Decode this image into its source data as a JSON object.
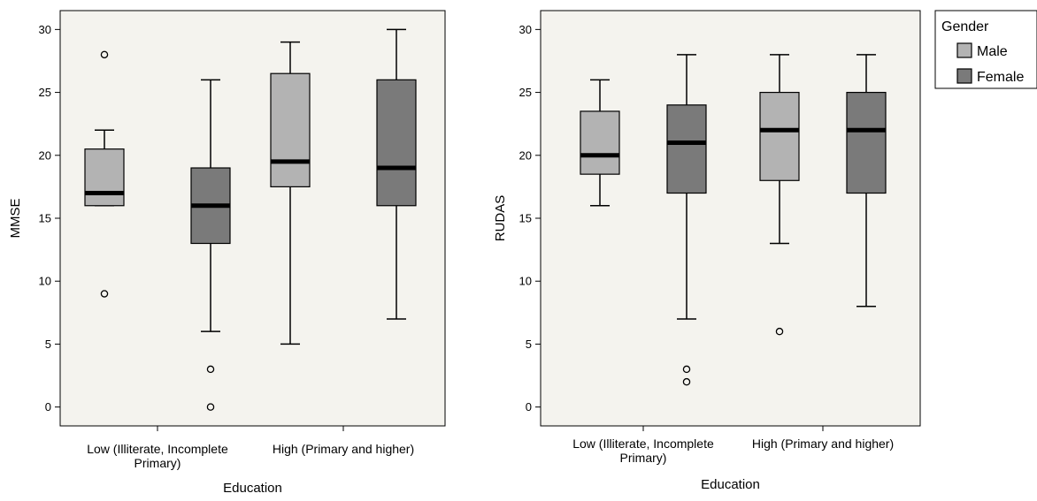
{
  "legend": {
    "title": "Gender",
    "items": [
      {
        "label": "Male",
        "color": "#b3b3b3"
      },
      {
        "label": "Female",
        "color": "#7a7a7a"
      }
    ]
  },
  "chart_data": [
    {
      "type": "boxplot",
      "xlabel": "Education",
      "ylabel": "MMSE",
      "ylim": [
        -1.5,
        31.5
      ],
      "yticks": [
        0,
        5,
        10,
        15,
        20,
        25,
        30
      ],
      "categories": [
        {
          "lines": [
            "Low (Illiterate, Incomplete",
            "Primary)"
          ]
        },
        {
          "lines": [
            "High (Primary and higher)"
          ]
        }
      ],
      "series": [
        {
          "name": "Male",
          "color": "#b3b3b3",
          "boxes": [
            {
              "whisker_low": 16,
              "q1": 16,
              "median": 17,
              "q3": 20.5,
              "whisker_high": 22,
              "outliers": [
                28,
                9
              ]
            },
            {
              "whisker_low": 5,
              "q1": 17.5,
              "median": 19.5,
              "q3": 26.5,
              "whisker_high": 29,
              "outliers": []
            }
          ]
        },
        {
          "name": "Female",
          "color": "#7a7a7a",
          "boxes": [
            {
              "whisker_low": 6,
              "q1": 13,
              "median": 16,
              "q3": 19,
              "whisker_high": 26,
              "outliers": [
                3,
                0
              ]
            },
            {
              "whisker_low": 7,
              "q1": 16,
              "median": 19,
              "q3": 26,
              "whisker_high": 30,
              "outliers": []
            }
          ]
        }
      ]
    },
    {
      "type": "boxplot",
      "xlabel": "Education",
      "ylabel": "RUDAS",
      "ylim": [
        -1.5,
        31.5
      ],
      "yticks": [
        0,
        5,
        10,
        15,
        20,
        25,
        30
      ],
      "categories": [
        {
          "lines": [
            "Low (Illiterate, Incomplete",
            "Primary)"
          ]
        },
        {
          "lines": [
            "High (Primary and higher)"
          ]
        }
      ],
      "series": [
        {
          "name": "Male",
          "color": "#b3b3b3",
          "boxes": [
            {
              "whisker_low": 16,
              "q1": 18.5,
              "median": 20,
              "q3": 23.5,
              "whisker_high": 26,
              "outliers": []
            },
            {
              "whisker_low": 13,
              "q1": 18,
              "median": 22,
              "q3": 25,
              "whisker_high": 28,
              "outliers": [
                6
              ]
            }
          ]
        },
        {
          "name": "Female",
          "color": "#7a7a7a",
          "boxes": [
            {
              "whisker_low": 7,
              "q1": 17,
              "median": 21,
              "q3": 24,
              "whisker_high": 28,
              "outliers": [
                3,
                2
              ]
            },
            {
              "whisker_low": 8,
              "q1": 17,
              "median": 22,
              "q3": 25,
              "whisker_high": 28,
              "outliers": []
            }
          ]
        }
      ]
    }
  ]
}
